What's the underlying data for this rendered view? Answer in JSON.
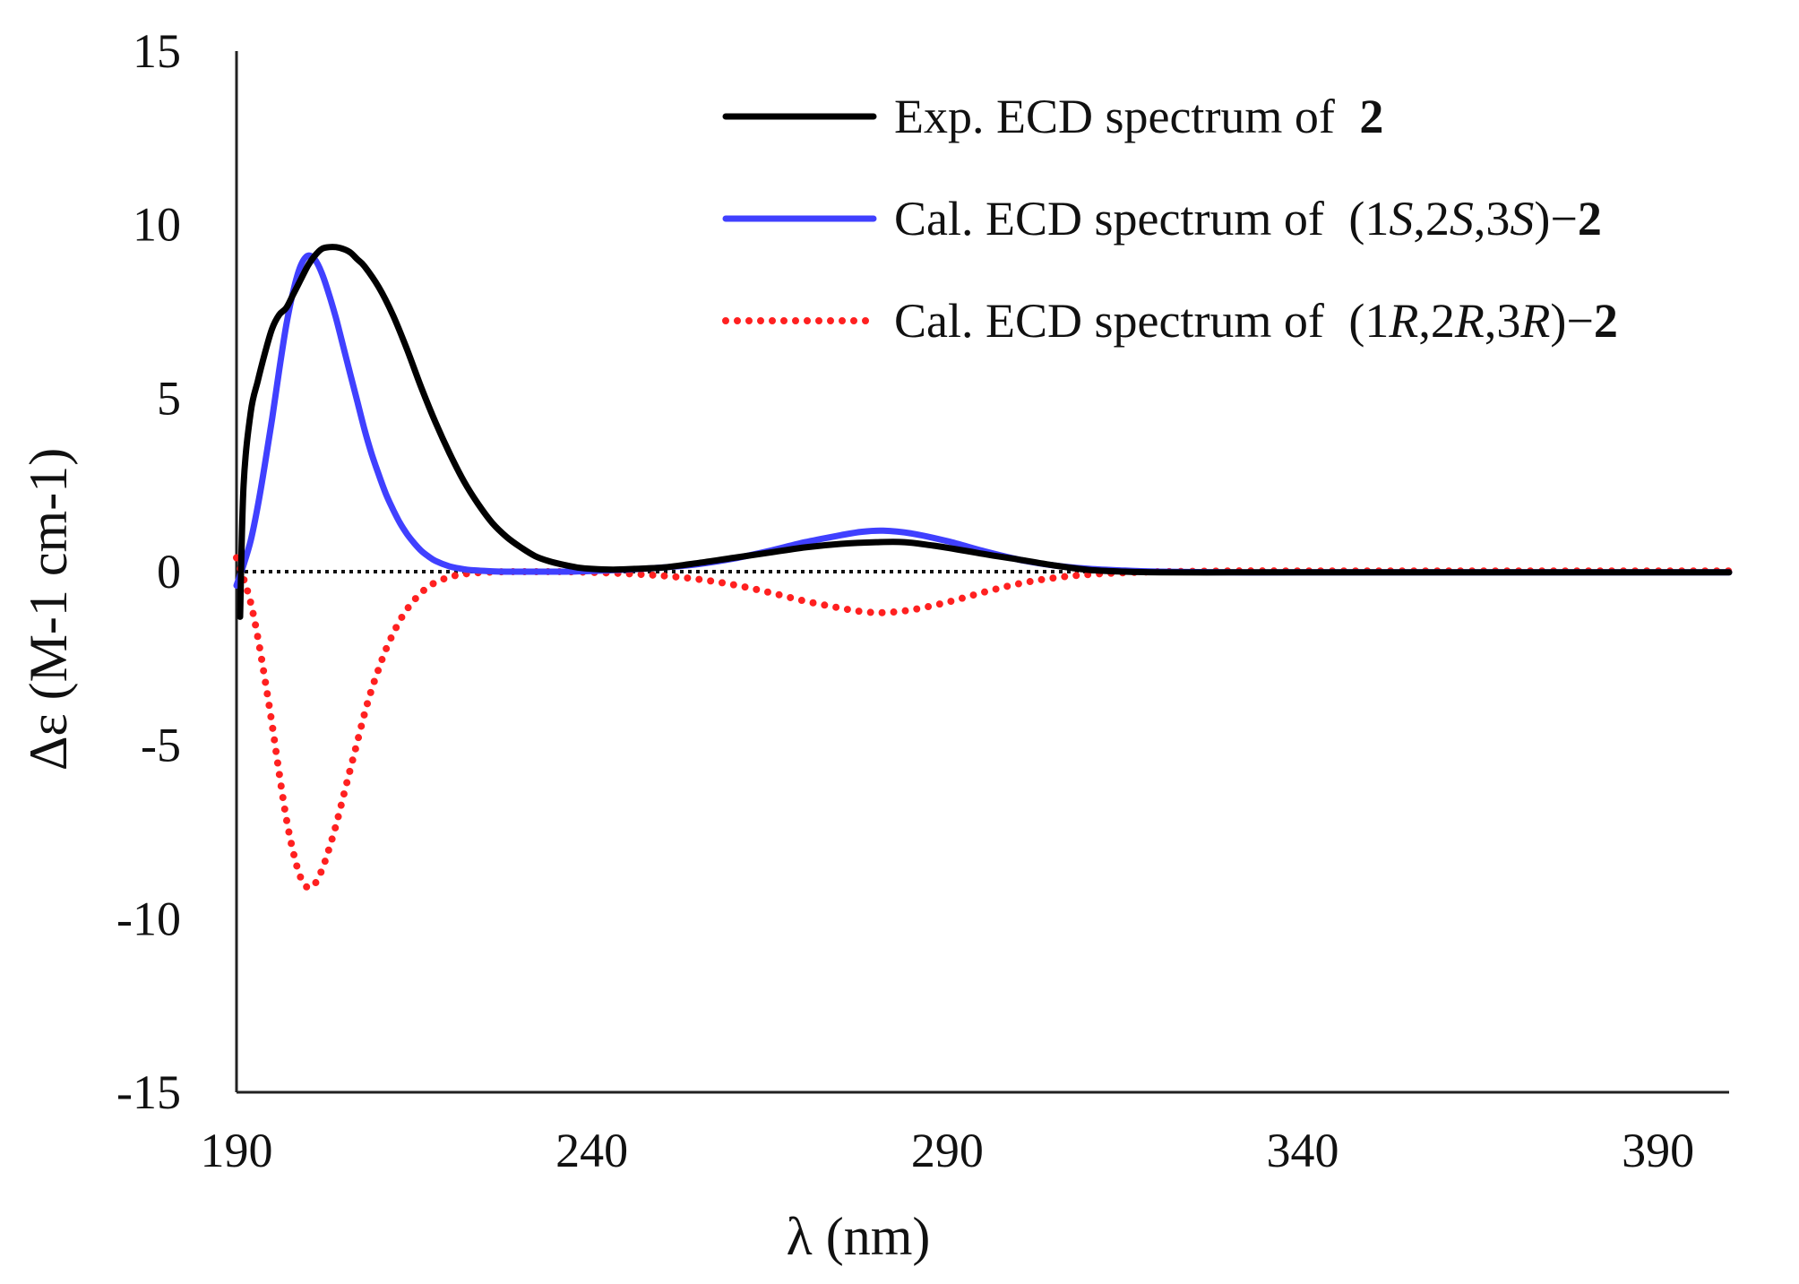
{
  "chart_data": {
    "type": "line",
    "title": "",
    "xlabel": "λ (nm)",
    "ylabel": "Δε (M-1 cm-1)",
    "xlim": [
      190,
      400
    ],
    "ylim": [
      -15,
      15
    ],
    "x_ticks": [
      190,
      240,
      290,
      340,
      390
    ],
    "y_ticks": [
      15,
      10,
      5,
      0,
      -5,
      -10,
      -15
    ],
    "grid": false,
    "legend_position": "top-right",
    "zero_line": true,
    "series": [
      {
        "name": "Exp. ECD spectrum of 2",
        "color": "#000000",
        "style": "solid",
        "x": [
          190.5,
          191,
          192,
          193,
          194,
          195,
          196,
          197,
          198,
          199,
          200,
          201,
          202,
          203,
          204,
          205,
          206,
          207,
          208,
          210,
          212,
          214,
          216,
          218,
          220,
          222,
          224,
          226,
          228,
          230,
          232,
          234,
          236,
          238,
          240,
          243,
          246,
          250,
          255,
          260,
          265,
          270,
          275,
          280,
          284,
          288,
          292,
          296,
          300,
          305,
          310,
          315,
          320,
          330,
          340,
          360,
          380,
          400
        ],
        "y": [
          -1.3,
          2.5,
          4.6,
          5.5,
          6.3,
          7.0,
          7.4,
          7.6,
          8.0,
          8.4,
          8.8,
          9.1,
          9.3,
          9.35,
          9.35,
          9.3,
          9.2,
          9.0,
          8.8,
          8.2,
          7.4,
          6.4,
          5.3,
          4.3,
          3.4,
          2.6,
          1.95,
          1.4,
          1.0,
          0.7,
          0.45,
          0.3,
          0.2,
          0.12,
          0.08,
          0.06,
          0.08,
          0.12,
          0.25,
          0.4,
          0.55,
          0.7,
          0.8,
          0.85,
          0.85,
          0.75,
          0.62,
          0.48,
          0.35,
          0.18,
          0.05,
          0.0,
          -0.02,
          -0.02,
          -0.02,
          -0.02,
          -0.02,
          -0.02
        ]
      },
      {
        "name": "Cal. ECD spectrum of (1S,2S,3S)−2",
        "color": "#4040ff",
        "style": "solid",
        "x": [
          190,
          191,
          192,
          193,
          194,
          195,
          196,
          197,
          198,
          199,
          200,
          201,
          202,
          203,
          204,
          205,
          206,
          207,
          208,
          209,
          210,
          211,
          212,
          213,
          214,
          215,
          216,
          217,
          218,
          220,
          222,
          224,
          226,
          228,
          230,
          233,
          236,
          240,
          245,
          250,
          255,
          260,
          265,
          270,
          275,
          278,
          281,
          285,
          290,
          295,
          300,
          305,
          310,
          315,
          320,
          330,
          340,
          360,
          380,
          400
        ],
        "y": [
          -0.4,
          0.2,
          0.9,
          1.9,
          3.1,
          4.4,
          5.8,
          7.1,
          8.1,
          8.8,
          9.1,
          9.0,
          8.6,
          8.0,
          7.3,
          6.5,
          5.7,
          4.9,
          4.1,
          3.4,
          2.8,
          2.25,
          1.8,
          1.4,
          1.08,
          0.82,
          0.6,
          0.44,
          0.31,
          0.15,
          0.07,
          0.03,
          0.01,
          0.0,
          0.0,
          0.0,
          0.0,
          0.02,
          0.06,
          0.12,
          0.22,
          0.38,
          0.6,
          0.85,
          1.05,
          1.15,
          1.18,
          1.1,
          0.88,
          0.6,
          0.35,
          0.18,
          0.08,
          0.03,
          0.0,
          -0.02,
          -0.02,
          -0.02,
          -0.02,
          -0.02
        ]
      },
      {
        "name": "Cal. ECD spectrum of (1R,2R,3R)−2",
        "color": "#ff2020",
        "style": "dotted",
        "x": [
          190,
          191,
          192,
          193,
          194,
          195,
          196,
          197,
          198,
          199,
          200,
          201,
          202,
          203,
          204,
          205,
          206,
          207,
          208,
          209,
          210,
          211,
          212,
          213,
          214,
          215,
          216,
          217,
          218,
          220,
          222,
          224,
          226,
          228,
          230,
          233,
          236,
          240,
          245,
          250,
          255,
          260,
          265,
          270,
          275,
          278,
          281,
          285,
          290,
          295,
          300,
          305,
          310,
          315,
          320,
          330,
          340,
          360,
          380,
          400
        ],
        "y": [
          0.4,
          -0.2,
          -0.9,
          -1.9,
          -3.1,
          -4.4,
          -5.8,
          -7.1,
          -8.1,
          -8.8,
          -9.1,
          -9.0,
          -8.6,
          -8.0,
          -7.3,
          -6.5,
          -5.7,
          -4.9,
          -4.1,
          -3.4,
          -2.8,
          -2.25,
          -1.8,
          -1.4,
          -1.08,
          -0.82,
          -0.6,
          -0.44,
          -0.31,
          -0.15,
          -0.07,
          -0.03,
          -0.01,
          0.0,
          0.0,
          0.0,
          0.0,
          -0.02,
          -0.06,
          -0.12,
          -0.22,
          -0.38,
          -0.6,
          -0.85,
          -1.05,
          -1.15,
          -1.18,
          -1.1,
          -0.88,
          -0.6,
          -0.35,
          -0.18,
          -0.08,
          -0.03,
          0.0,
          0.02,
          0.02,
          0.02,
          0.02,
          0.02
        ]
      }
    ],
    "legend": [
      {
        "prefix": "Exp. ECD spectrum of ",
        "config": "",
        "suffix": "2"
      },
      {
        "prefix": "Cal. ECD spectrum of ",
        "config": "(1S,2S,3S)−",
        "suffix": "2"
      },
      {
        "prefix": "Cal. ECD spectrum of ",
        "config": "(1R,2R,3R)−",
        "suffix": "2"
      }
    ]
  }
}
